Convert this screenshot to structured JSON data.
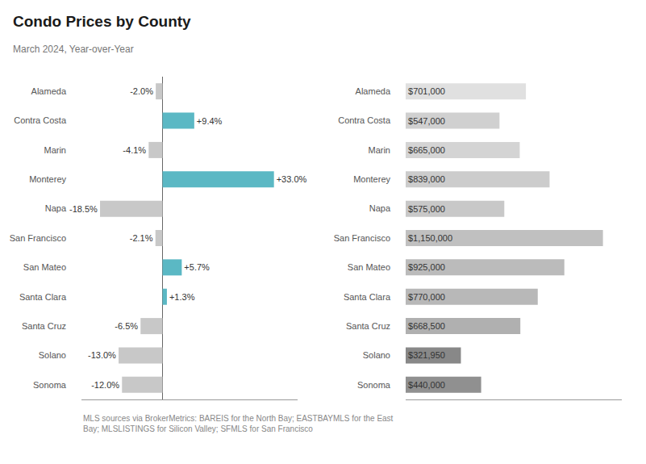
{
  "chart_data": [
    {
      "type": "bar",
      "title": "Condo Prices by County",
      "subtitle": "March 2024, Year-over-Year",
      "annotations": [
        "MLS sources via BrokerMetrics: BAREIS for the North Bay; EASTBAYMLS for the East\nBay; MLSLISTINGS for Silicon Valley; SFMLS for San Francisco"
      ],
      "orientation": "horizontal",
      "categories": [
        "Alameda",
        "Contra Costa",
        "Marin",
        "Monterey",
        "Napa",
        "San Francisco",
        "San Mateo",
        "Santa Clara",
        "Santa Cruz",
        "Solano",
        "Sonoma"
      ],
      "values": [
        -2.0,
        9.4,
        -4.1,
        33.0,
        -18.5,
        -2.1,
        5.7,
        1.3,
        -6.5,
        -13.0,
        -12.0
      ],
      "value_labels": [
        "-2.0%",
        "+9.4%",
        "-4.1%",
        "+33.0%",
        "-18.5%",
        "-2.1%",
        "+5.7%",
        "+1.3%",
        "-6.5%",
        "-13.0%",
        "-12.0%"
      ],
      "colors": [
        "#c8c8c8",
        "#5bb8c4",
        "#c8c8c8",
        "#5bb8c4",
        "#c8c8c8",
        "#c8c8c8",
        "#5bb8c4",
        "#5bb8c4",
        "#c8c8c8",
        "#c8c8c8",
        "#c8c8c8"
      ],
      "xlim": [
        -24,
        40
      ],
      "data_labels": true,
      "tick_labels": "y",
      "grid": false
    },
    {
      "type": "bar",
      "orientation": "horizontal",
      "categories": [
        "Alameda",
        "Contra Costa",
        "Marin",
        "Monterey",
        "Napa",
        "San Francisco",
        "San Mateo",
        "Santa Clara",
        "Santa Cruz",
        "Solano",
        "Sonoma"
      ],
      "values": [
        701000,
        547000,
        665000,
        839000,
        575000,
        1150000,
        925000,
        770000,
        668500,
        321950,
        440000
      ],
      "value_labels": [
        "$701,000",
        "$547,000",
        "$665,000",
        "$839,000",
        "$575,000",
        "$1,150,000",
        "$925,000",
        "$770,000",
        "$668,500",
        "$321,950",
        "$440,000"
      ],
      "colors": [
        "#e0e0e0",
        "#d0d0d0",
        "#d4d4d4",
        "#cccccc",
        "#c8c8c8",
        "#c0c0c0",
        "#bbbbbb",
        "#b8b8b8",
        "#b0b0b0",
        "#888888",
        "#909090"
      ],
      "xlim": [
        0,
        1260000
      ],
      "data_labels": true,
      "tick_labels": "y",
      "grid": false
    }
  ]
}
